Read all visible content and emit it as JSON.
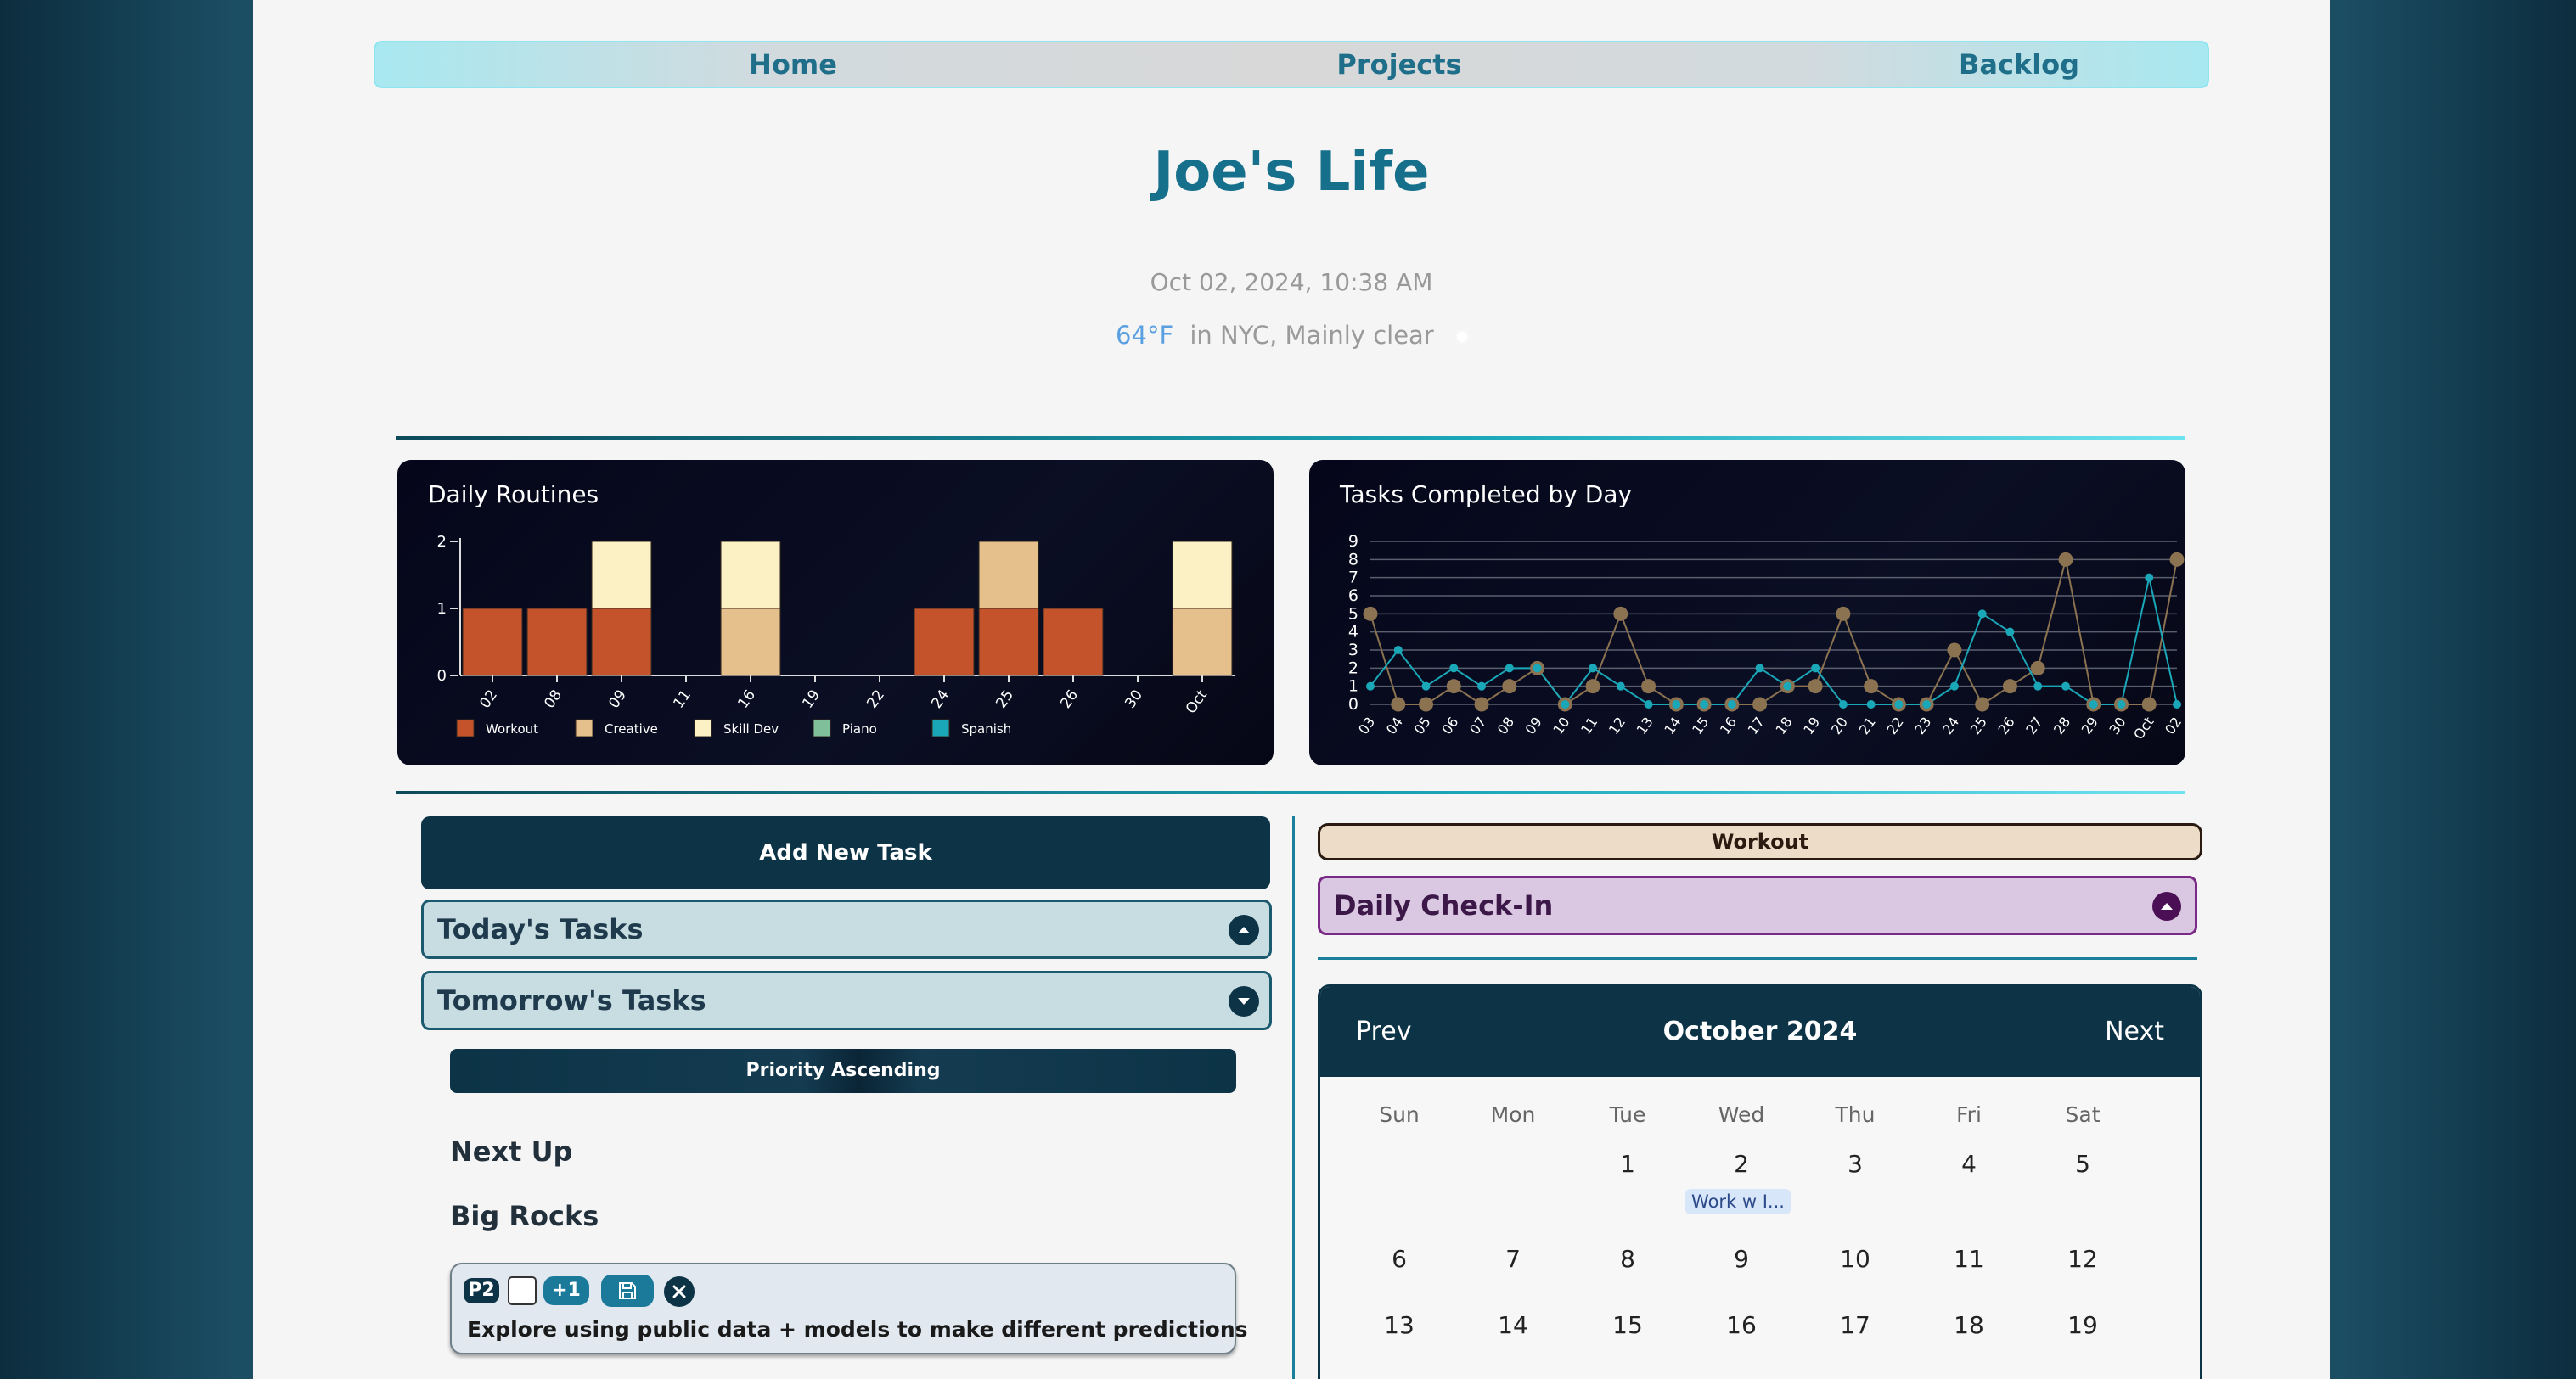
{
  "nav": {
    "items": [
      {
        "label": "Home"
      },
      {
        "label": "Projects"
      },
      {
        "label": "Backlog"
      }
    ]
  },
  "header": {
    "title": "Joe's Life",
    "datetime": "Oct 02, 2024, 10:38 AM",
    "temperature": "64°F",
    "weather_text": "in NYC, Mainly clear"
  },
  "charts": {
    "routines_title": "Daily Routines",
    "tasks_title": "Tasks Completed by Day"
  },
  "chart_data": [
    {
      "type": "bar",
      "title": "Daily Routines",
      "categories": [
        "02",
        "08",
        "09",
        "11",
        "16",
        "19",
        "22",
        "24",
        "25",
        "26",
        "30",
        "Oct"
      ],
      "series": [
        {
          "name": "Workout",
          "color": "#c4532c",
          "values": [
            1,
            1,
            1,
            0,
            0,
            0,
            0,
            1,
            1,
            1,
            0,
            0
          ]
        },
        {
          "name": "Creative",
          "color": "#e5c08c",
          "values": [
            0,
            0,
            0,
            0,
            1,
            0,
            0,
            0,
            1,
            0,
            0,
            1
          ]
        },
        {
          "name": "Skill Dev",
          "color": "#fbf1c4",
          "values": [
            0,
            0,
            1,
            0,
            1,
            0,
            0,
            0,
            0,
            0,
            0,
            1
          ]
        },
        {
          "name": "Piano",
          "color": "#7fbf9a",
          "values": [
            0,
            0,
            0,
            0,
            0,
            0,
            0,
            0,
            0,
            0,
            0,
            0
          ]
        },
        {
          "name": "Spanish",
          "color": "#1aa7b8",
          "values": [
            0,
            0,
            0,
            0,
            0,
            0,
            0,
            0,
            0,
            0,
            0,
            0
          ]
        }
      ],
      "yticks": [
        "0",
        "1",
        "2"
      ],
      "ylim": [
        0,
        2
      ],
      "legend": "bottom"
    },
    {
      "type": "line",
      "title": "Tasks Completed by Day",
      "categories": [
        "03",
        "04",
        "05",
        "06",
        "07",
        "08",
        "09",
        "10",
        "11",
        "12",
        "13",
        "14",
        "15",
        "16",
        "17",
        "18",
        "19",
        "20",
        "21",
        "22",
        "23",
        "24",
        "25",
        "26",
        "27",
        "28",
        "29",
        "30",
        "Oct",
        "02"
      ],
      "series": [
        {
          "color": "#1aa7b8",
          "values": [
            1,
            3,
            1,
            2,
            1,
            2,
            2,
            0,
            2,
            1,
            0,
            0,
            0,
            0,
            2,
            1,
            2,
            0,
            0,
            0,
            0,
            1,
            5,
            4,
            1,
            1,
            0,
            0,
            7,
            0
          ]
        },
        {
          "color": "#8b7250",
          "values": [
            5,
            0,
            0,
            1,
            0,
            1,
            2,
            0,
            1,
            5,
            1,
            0,
            0,
            0,
            0,
            1,
            1,
            5,
            1,
            0,
            0,
            3,
            0,
            1,
            2,
            8,
            0,
            0,
            0,
            8
          ]
        }
      ],
      "yticks": [
        "0",
        "1",
        "2",
        "3",
        "4",
        "5",
        "6",
        "7",
        "8",
        "9"
      ],
      "ylim": [
        0,
        9
      ],
      "grid": true
    }
  ],
  "tasks": {
    "add_button": "Add New Task",
    "today_label": "Today's Tasks",
    "tomorrow_label": "Tomorrow's Tasks",
    "sort_button": "Priority Ascending",
    "next_up": "Next Up",
    "big_rocks": "Big Rocks",
    "item": {
      "priority": "P2",
      "increment": "+1",
      "text": "Explore using public data + models to make different predictions"
    }
  },
  "right": {
    "routine_pill": "Workout",
    "checkin_label": "Daily Check-In"
  },
  "calendar": {
    "prev": "Prev",
    "next": "Next",
    "month": "October 2024",
    "weekdays": [
      "Sun",
      "Mon",
      "Tue",
      "Wed",
      "Thu",
      "Fri",
      "Sat"
    ],
    "week1": [
      "",
      "",
      "1",
      "2",
      "3",
      "4",
      "5"
    ],
    "week2": [
      "6",
      "7",
      "8",
      "9",
      "10",
      "11",
      "12"
    ],
    "week3": [
      "13",
      "14",
      "15",
      "16",
      "17",
      "18",
      "19"
    ],
    "event": "Work w I..."
  },
  "colors": {
    "accent": "#1f6f8b",
    "dark": "#0c3346",
    "checkin": "#7a2a86"
  }
}
